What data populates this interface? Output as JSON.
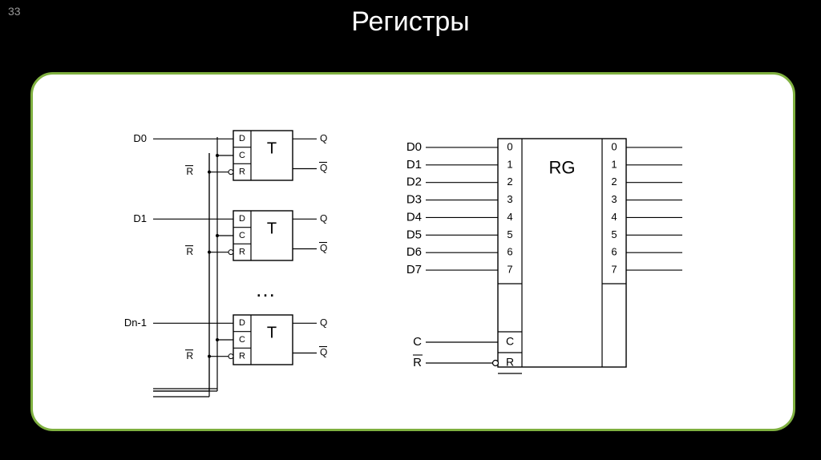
{
  "slide_number": "33",
  "title": "Регистры",
  "colors": {
    "bg": "#000000",
    "panel_bg": "#ffffff",
    "panel_border": "#7fb040",
    "stroke": "#000000",
    "text": "#000000",
    "title_text": "#ffffff"
  },
  "left_diagram": {
    "input_labels": [
      "D0",
      "D1",
      "Dn-1"
    ],
    "ellipsis": "…",
    "trigger": {
      "center_label": "T",
      "pins_left": [
        "D",
        "C",
        "R"
      ],
      "outputs": [
        "Q",
        "Q"
      ],
      "r_overline": true,
      "q2_overline": true
    },
    "bus_label_R": "R",
    "bus_R_overline": true
  },
  "right_diagram": {
    "center_label": "RG",
    "data_inputs": [
      "D0",
      "D1",
      "D2",
      "D3",
      "D4",
      "D5",
      "D6",
      "D7"
    ],
    "left_indices": [
      "0",
      "1",
      "2",
      "3",
      "4",
      "5",
      "6",
      "7"
    ],
    "right_indices": [
      "0",
      "1",
      "2",
      "3",
      "4",
      "5",
      "6",
      "7"
    ],
    "control_inputs": [
      {
        "label": "C",
        "overline": false,
        "bubble": false
      },
      {
        "label": "R",
        "overline": true,
        "bubble": true
      }
    ],
    "external_labels": {
      "C": "C",
      "R": "R"
    }
  }
}
